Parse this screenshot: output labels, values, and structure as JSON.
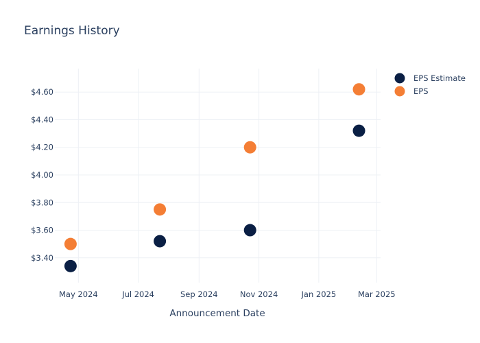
{
  "chart_data": {
    "type": "scatter",
    "title": "Earnings History",
    "xlabel": "Announcement Date",
    "ylabel": "",
    "x_ticks": [
      {
        "label": "May 2024",
        "date": "2024-05-01"
      },
      {
        "label": "Jul 2024",
        "date": "2024-07-01"
      },
      {
        "label": "Sep 2024",
        "date": "2024-09-01"
      },
      {
        "label": "Nov 2024",
        "date": "2024-11-01"
      },
      {
        "label": "Jan 2025",
        "date": "2025-01-01"
      },
      {
        "label": "Mar 2025",
        "date": "2025-03-01"
      }
    ],
    "y_ticks": [
      3.4,
      3.6,
      3.8,
      4.0,
      4.2,
      4.4,
      4.6
    ],
    "y_tick_format": "$",
    "xlim": [
      "2024-04-07",
      "2025-03-05"
    ],
    "ylim": [
      3.22,
      4.77
    ],
    "grid": true,
    "legend_position": "top-right",
    "series": [
      {
        "name": "EPS Estimate",
        "color": "#0a1f44",
        "points": [
          {
            "x": "2024-04-23",
            "y": 3.34
          },
          {
            "x": "2024-07-23",
            "y": 3.52
          },
          {
            "x": "2024-10-23",
            "y": 3.6
          },
          {
            "x": "2025-02-11",
            "y": 4.32
          }
        ]
      },
      {
        "name": "EPS",
        "color": "#f47e35",
        "points": [
          {
            "x": "2024-04-23",
            "y": 3.5
          },
          {
            "x": "2024-07-23",
            "y": 3.75
          },
          {
            "x": "2024-10-23",
            "y": 4.2
          },
          {
            "x": "2025-02-11",
            "y": 4.62
          }
        ]
      }
    ]
  }
}
